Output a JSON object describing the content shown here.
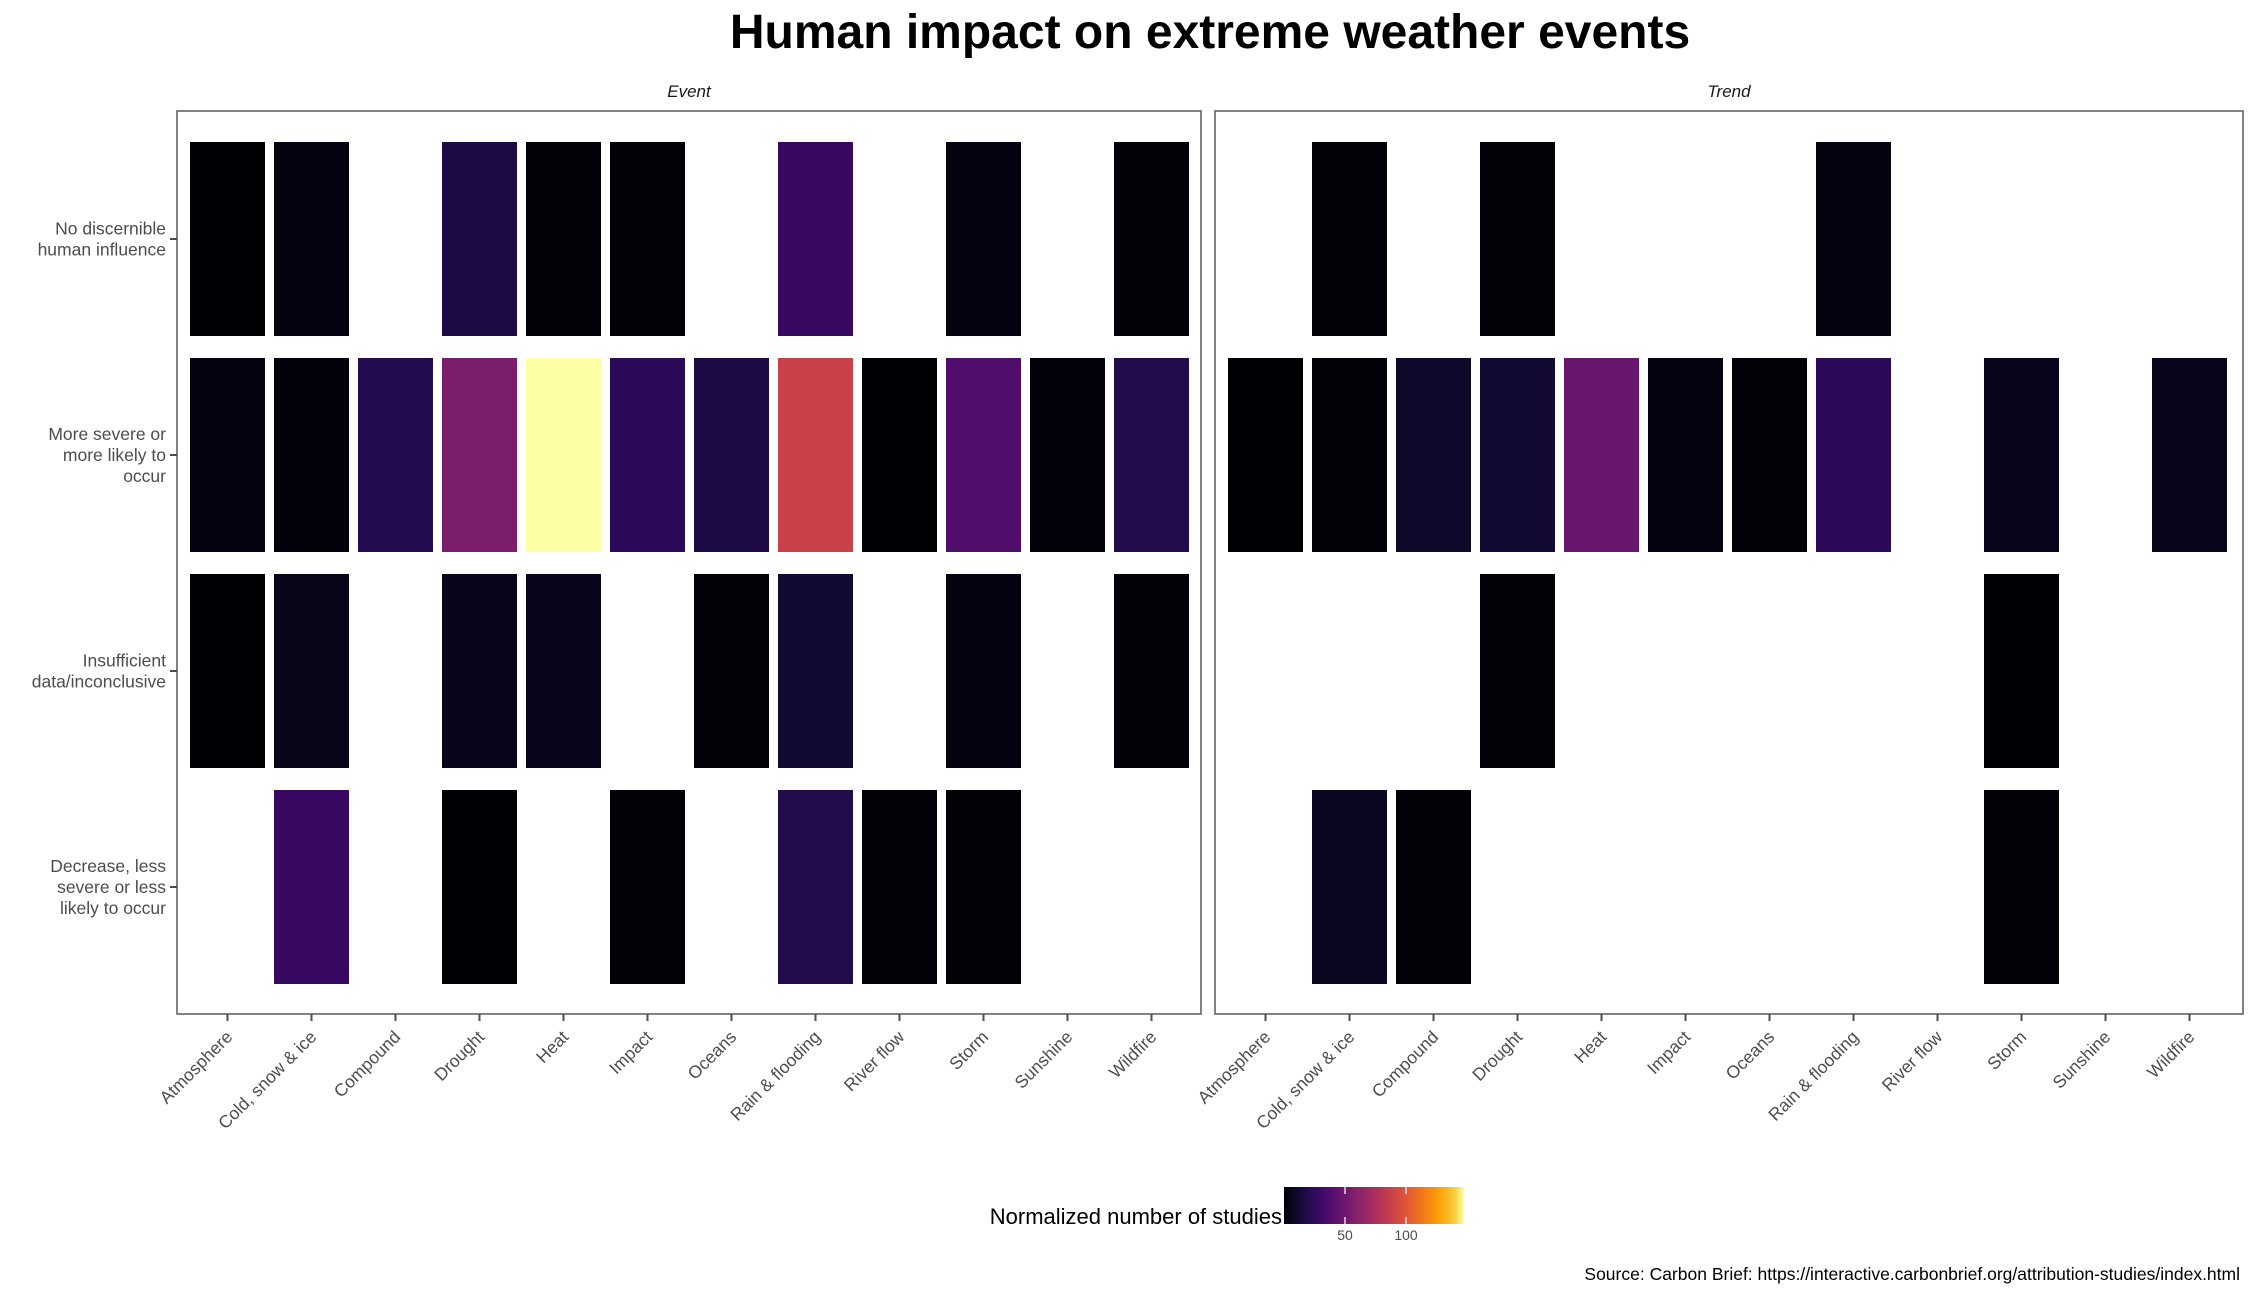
{
  "chart_data": {
    "type": "heatmap",
    "title": "Human impact on extreme weather events",
    "caption": "Source: Carbon Brief: https://interactive.carbonbrief.org/attribution-studies/index.html",
    "facets": [
      "Event",
      "Trend"
    ],
    "categories": [
      "Atmosphere",
      "Cold, snow & ice",
      "Compound",
      "Drought",
      "Heat",
      "Impact",
      "Oceans",
      "Rain & flooding",
      "River flow",
      "Storm",
      "Sunshine",
      "Wildfire"
    ],
    "rows": [
      "No discernible\nhuman influence",
      "More severe or\nmore likely to\noccur",
      "Insufficient\ndata/inconclusive",
      "Decrease, less\nsevere or less\nlikely to occur"
    ],
    "legend": {
      "title": "Normalized number of studies",
      "ticks": [
        50,
        100
      ],
      "tick_labels": [
        "50",
        "100"
      ],
      "range": [
        1,
        148
      ],
      "colormap": "inferno",
      "placement": "bottom"
    },
    "xlabel": "",
    "ylabel": "",
    "grid": false,
    "values": {
      "Event": [
        [
          1,
          4,
          null,
          19,
          2,
          2,
          null,
          29,
          null,
          4,
          null,
          2
        ],
        [
          4,
          3,
          22,
          56,
          148,
          25,
          19,
          89,
          1,
          38,
          3,
          21
        ],
        [
          1,
          6,
          null,
          7,
          7,
          null,
          2,
          14,
          null,
          4,
          null,
          2
        ],
        [
          null,
          29,
          null,
          1,
          null,
          2,
          null,
          21,
          2,
          2,
          null,
          null
        ]
      ],
      "Trend": [
        [
          null,
          2,
          null,
          2,
          null,
          null,
          null,
          4,
          null,
          null,
          null,
          null
        ],
        [
          1,
          2,
          11,
          14,
          48,
          4,
          2,
          25,
          null,
          7,
          null,
          7
        ],
        [
          null,
          null,
          null,
          2,
          null,
          null,
          null,
          null,
          null,
          1,
          null,
          null
        ],
        [
          null,
          8,
          2,
          null,
          null,
          null,
          null,
          null,
          null,
          2,
          null,
          null
        ]
      ]
    }
  }
}
